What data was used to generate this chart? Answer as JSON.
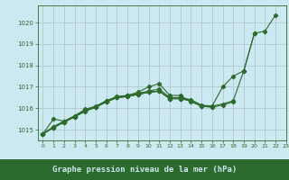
{
  "background_color": "#cce8f0",
  "plot_bg": "#cce8f0",
  "label_bg": "#2d6a2d",
  "grid_color": "#b0c8d0",
  "line_color": "#2d6a2d",
  "label_text_color": "#cce8f0",
  "tick_color": "#2d6a2d",
  "xlabel": "Graphe pression niveau de la mer (hPa)",
  "ylim": [
    1014.5,
    1020.8
  ],
  "xlim": [
    -0.5,
    23
  ],
  "yticks": [
    1015,
    1016,
    1017,
    1018,
    1019,
    1020
  ],
  "xticks": [
    0,
    1,
    2,
    3,
    4,
    5,
    6,
    7,
    8,
    9,
    10,
    11,
    12,
    13,
    14,
    15,
    16,
    17,
    18,
    19,
    20,
    21,
    22,
    23
  ],
  "series": [
    [
      1014.8,
      1015.5,
      1015.4,
      1015.6,
      1015.85,
      1016.05,
      1016.35,
      1016.5,
      1016.6,
      1016.75,
      1017.0,
      1017.15,
      1016.6,
      1016.6,
      1016.3,
      1016.1,
      1016.1,
      1017.0,
      1017.5,
      1017.75,
      1019.5,
      1019.6,
      1020.35,
      null
    ],
    [
      1014.8,
      1015.15,
      1015.4,
      1015.65,
      1015.95,
      1016.1,
      1016.35,
      1016.55,
      1016.6,
      1016.7,
      1016.8,
      1016.9,
      1016.5,
      1016.5,
      1016.4,
      1016.15,
      1016.1,
      1016.2,
      1016.35,
      1017.75,
      1019.5,
      null,
      null,
      null
    ],
    [
      1014.8,
      1015.1,
      1015.35,
      1015.6,
      1015.9,
      1016.05,
      1016.3,
      1016.5,
      1016.55,
      1016.65,
      1016.75,
      1016.8,
      1016.45,
      1016.45,
      1016.35,
      1016.1,
      1016.05,
      1016.15,
      1016.3,
      null,
      null,
      null,
      null,
      null
    ],
    [
      1014.8,
      1015.1,
      1015.35,
      1015.6,
      1015.9,
      1016.05,
      1016.3,
      1016.5,
      1016.55,
      1016.65,
      1016.75,
      1016.8,
      1016.45,
      1016.45,
      1016.35,
      1016.1,
      1016.05,
      null,
      null,
      null,
      null,
      null,
      null,
      null
    ],
    [
      1014.8,
      1015.1,
      1015.35,
      1015.6,
      1015.9,
      1016.05,
      1016.3,
      1016.5,
      1016.55,
      1016.65,
      1016.75,
      1016.8,
      1016.45,
      1016.45,
      1016.35,
      null,
      null,
      null,
      null,
      null,
      null,
      null,
      null,
      null
    ]
  ]
}
